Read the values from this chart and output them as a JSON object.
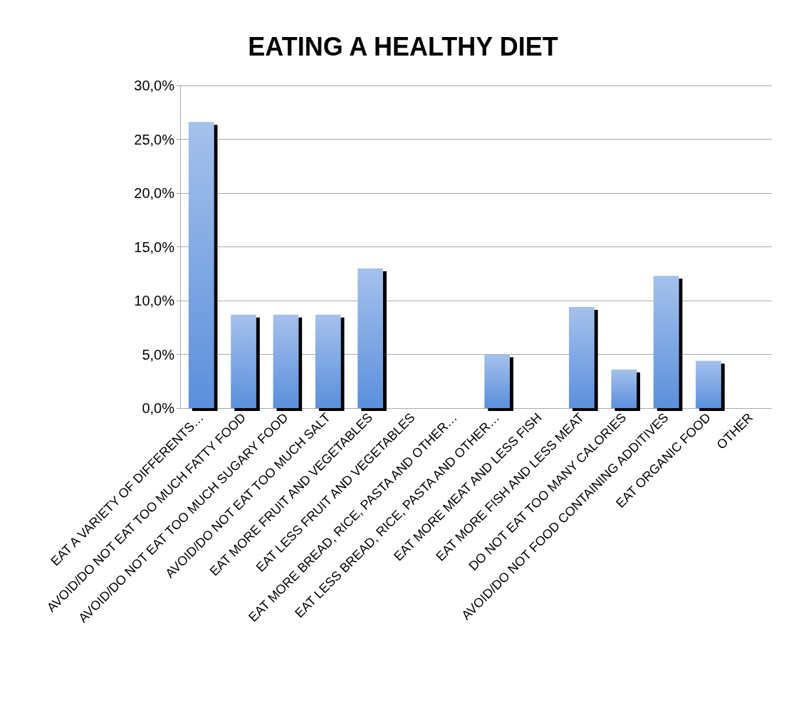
{
  "chart_data": {
    "type": "bar",
    "title": "EATING A HEALTHY DIET",
    "categories": [
      "EAT A VARIETY OF DIFFERENTS…",
      "AVOID/DO NOT EAT TOO MUCH FATTY FOOD",
      "AVOID/DO NOT EAT TOO MUCH SUGARY FOOD",
      "AVOID/DO NOT EAT TOO MUCH SALT",
      "EAT MORE FRUIT AND VEGETABLES",
      "EAT LESS FRUIT AND VEGETABLES",
      "EAT MORE BREAD, RICE, PASTA AND OTHER…",
      "EAT LESS BREAD, RICE, PASTA AND OTHER…",
      "EAT MORE MEAT AND LESS FISH",
      "EAT MORE FISH AND LESS MEAT",
      "DO NOT EAT TOO MANY CALORIES",
      "AVOID/DO NOT FOOD CONTAINING ADDITIVES",
      "EAT ORGANIC FOOD",
      "OTHER"
    ],
    "values": [
      26.6,
      8.7,
      8.7,
      8.7,
      13.0,
      0,
      0,
      5.0,
      0,
      9.4,
      3.6,
      12.3,
      4.4,
      0
    ],
    "color": "#5b8fdc",
    "ylim": [
      0,
      30
    ],
    "yticks": [
      {
        "value": 0,
        "label": "0,0%"
      },
      {
        "value": 5,
        "label": "5,0%"
      },
      {
        "value": 10,
        "label": "10,0%"
      },
      {
        "value": 15,
        "label": "15,0%"
      },
      {
        "value": 20,
        "label": "20,0%"
      },
      {
        "value": 25,
        "label": "25,0%"
      },
      {
        "value": 30,
        "label": "30,0%"
      }
    ],
    "grid": "y"
  }
}
